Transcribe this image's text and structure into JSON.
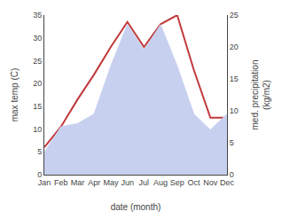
{
  "chart_data": {
    "type": "line",
    "categories": [
      "Jan",
      "Feb",
      "Mar",
      "Apr",
      "May",
      "Jun",
      "Jul",
      "Aug",
      "Sep",
      "Oct",
      "Nov",
      "Dec"
    ],
    "xlabel": "date (month)",
    "ylabel": "max temp (C)",
    "y2label": "med. precipitation\n(kg/m2)",
    "series": [
      {
        "type": "area",
        "axis": "y2",
        "color": "#c8d0f0",
        "values": [
          3.5,
          7.5,
          8,
          9.5,
          17,
          23.5,
          19.5,
          23.5,
          17,
          9.5,
          7,
          9.5
        ]
      },
      {
        "type": "line",
        "color": "#c0393b",
        "values": [
          6,
          10.5,
          16.5,
          22,
          28,
          33.5,
          28,
          33,
          35,
          23,
          12.5,
          12.5
        ]
      }
    ],
    "ylim": [
      0,
      35
    ],
    "yticks": [
      0,
      5,
      10,
      15,
      20,
      25,
      30,
      35
    ],
    "y2lim": [
      0,
      25
    ],
    "y2ticks": [
      0,
      5,
      10,
      15,
      20,
      25
    ],
    "grid": false
  }
}
